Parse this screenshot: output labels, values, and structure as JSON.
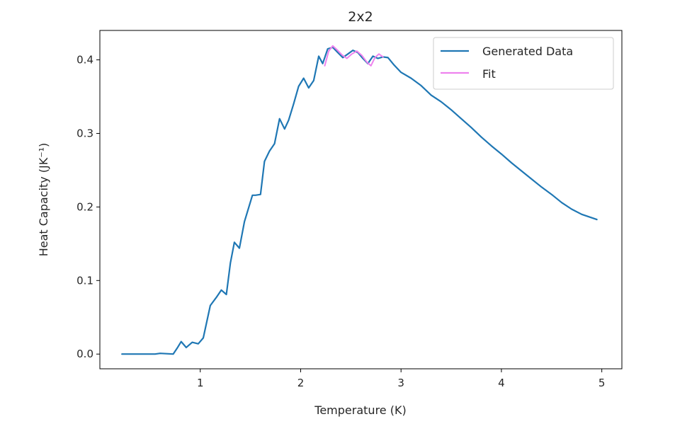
{
  "chart_data": {
    "type": "line",
    "title": "2x2",
    "xlabel": "Temperature (K)",
    "ylabel": "Heat Capacity (JK⁻¹)",
    "xlim": [
      0.0,
      5.2
    ],
    "ylim": [
      -0.02,
      0.44
    ],
    "xticks": [
      1,
      2,
      3,
      4,
      5
    ],
    "xtick_labels": [
      "1",
      "2",
      "3",
      "4",
      "5"
    ],
    "yticks": [
      0.0,
      0.1,
      0.2,
      0.3,
      0.4
    ],
    "ytick_labels": [
      "0.0",
      "0.1",
      "0.2",
      "0.3",
      "0.4"
    ],
    "grid": false,
    "legend_position": "top-right",
    "series": [
      {
        "name": "Generated Data",
        "color": "#1f77b4",
        "x": [
          0.22,
          0.4,
          0.55,
          0.6,
          0.73,
          0.77,
          0.81,
          0.86,
          0.92,
          0.98,
          1.03,
          1.1,
          1.16,
          1.21,
          1.26,
          1.3,
          1.34,
          1.39,
          1.44,
          1.52,
          1.55,
          1.6,
          1.64,
          1.69,
          1.74,
          1.79,
          1.84,
          1.88,
          1.93,
          1.98,
          2.03,
          2.08,
          2.13,
          2.18,
          2.22,
          2.27,
          2.32,
          2.37,
          2.42,
          2.47,
          2.52,
          2.57,
          2.62,
          2.67,
          2.72,
          2.77,
          2.82,
          2.87,
          2.93,
          3.0,
          3.1,
          3.2,
          3.3,
          3.4,
          3.5,
          3.6,
          3.7,
          3.8,
          3.9,
          4.0,
          4.1,
          4.2,
          4.3,
          4.4,
          4.5,
          4.6,
          4.7,
          4.8,
          4.95
        ],
        "y": [
          0.0,
          0.0,
          0.0,
          0.001,
          0.0,
          0.008,
          0.017,
          0.009,
          0.016,
          0.014,
          0.022,
          0.066,
          0.077,
          0.087,
          0.081,
          0.124,
          0.152,
          0.144,
          0.18,
          0.216,
          0.216,
          0.217,
          0.262,
          0.276,
          0.286,
          0.32,
          0.306,
          0.318,
          0.34,
          0.364,
          0.375,
          0.362,
          0.372,
          0.405,
          0.395,
          0.415,
          0.417,
          0.41,
          0.403,
          0.408,
          0.413,
          0.41,
          0.402,
          0.395,
          0.405,
          0.402,
          0.404,
          0.403,
          0.393,
          0.383,
          0.375,
          0.365,
          0.352,
          0.343,
          0.332,
          0.32,
          0.308,
          0.295,
          0.283,
          0.272,
          0.26,
          0.249,
          0.238,
          0.227,
          0.217,
          0.206,
          0.197,
          0.19,
          0.183
        ]
      },
      {
        "name": "Fit",
        "color": "#ee82ee",
        "x": [
          2.24,
          2.28,
          2.32,
          2.36,
          2.41,
          2.46,
          2.51,
          2.56,
          2.61,
          2.66,
          2.7,
          2.74,
          2.78,
          2.82
        ],
        "y": [
          0.392,
          0.412,
          0.419,
          0.414,
          0.407,
          0.402,
          0.408,
          0.412,
          0.406,
          0.397,
          0.392,
          0.403,
          0.408,
          0.404
        ]
      }
    ]
  }
}
